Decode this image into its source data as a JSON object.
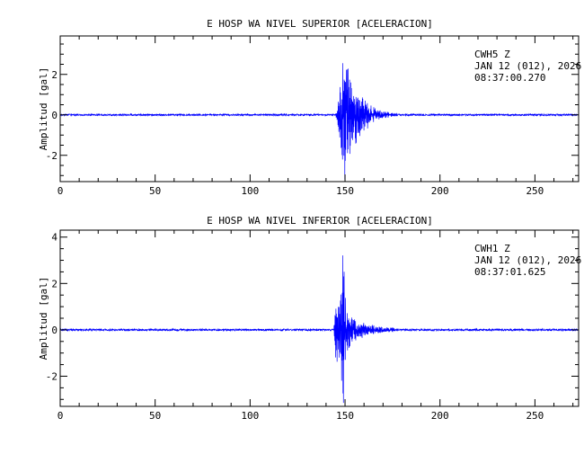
{
  "chart_data": [
    {
      "type": "line",
      "title": "E HOSP WA NIVEL SUPERIOR [ACELERACION]",
      "xlabel": "",
      "ylabel": "Amplitud [gal]",
      "xlim": [
        0,
        273
      ],
      "ylim": [
        -3.3,
        3.9
      ],
      "x_ticks": [
        0,
        50,
        100,
        150,
        200,
        250
      ],
      "y_ticks": [
        -2,
        0,
        2
      ],
      "grid": false,
      "annotation": [
        "CWH5   Z",
        "JAN 12 (012), 2026",
        "08:37:00.270"
      ],
      "series": [
        {
          "color": "#0000ff",
          "noise_amplitude": 0.04,
          "envelope_points": [
            [
              0,
              0.05
            ],
            [
              145,
              0.05
            ],
            [
              146,
              0.5
            ],
            [
              147,
              1.6
            ],
            [
              148,
              2.2
            ],
            [
              149,
              3.3
            ],
            [
              150,
              3.9
            ],
            [
              151,
              3.1
            ],
            [
              152,
              2.3
            ],
            [
              154,
              1.8
            ],
            [
              156,
              1.5
            ],
            [
              158,
              1.2
            ],
            [
              160,
              0.9
            ],
            [
              163,
              0.6
            ],
            [
              166,
              0.35
            ],
            [
              170,
              0.22
            ],
            [
              175,
              0.12
            ],
            [
              180,
              0.08
            ],
            [
              190,
              0.06
            ],
            [
              273,
              0.05
            ]
          ]
        }
      ]
    },
    {
      "type": "line",
      "title": "E HOSP WA NIVEL INFERIOR [ACELERACION]",
      "xlabel": "",
      "ylabel": "Amplitud [gal]",
      "xlim": [
        0,
        273
      ],
      "ylim": [
        -3.3,
        4.3
      ],
      "x_ticks": [
        0,
        50,
        100,
        150,
        200,
        250
      ],
      "y_ticks": [
        -2,
        0,
        2,
        4
      ],
      "grid": false,
      "annotation": [
        "CWH1   Z",
        "JAN 12 (012), 2026",
        "08:37:01.625"
      ],
      "series": [
        {
          "color": "#0000ff",
          "noise_amplitude": 0.04,
          "envelope_points": [
            [
              0,
              0.05
            ],
            [
              144,
              0.05
            ],
            [
              145,
              1.2
            ],
            [
              146,
              2.0
            ],
            [
              147,
              1.4
            ],
            [
              148,
              2.6
            ],
            [
              149,
              3.9
            ],
            [
              150,
              2.1
            ],
            [
              151,
              1.2
            ],
            [
              153,
              0.8
            ],
            [
              155,
              0.6
            ],
            [
              158,
              0.45
            ],
            [
              162,
              0.3
            ],
            [
              166,
              0.2
            ],
            [
              172,
              0.12
            ],
            [
              180,
              0.08
            ],
            [
              273,
              0.05
            ]
          ]
        }
      ]
    }
  ]
}
